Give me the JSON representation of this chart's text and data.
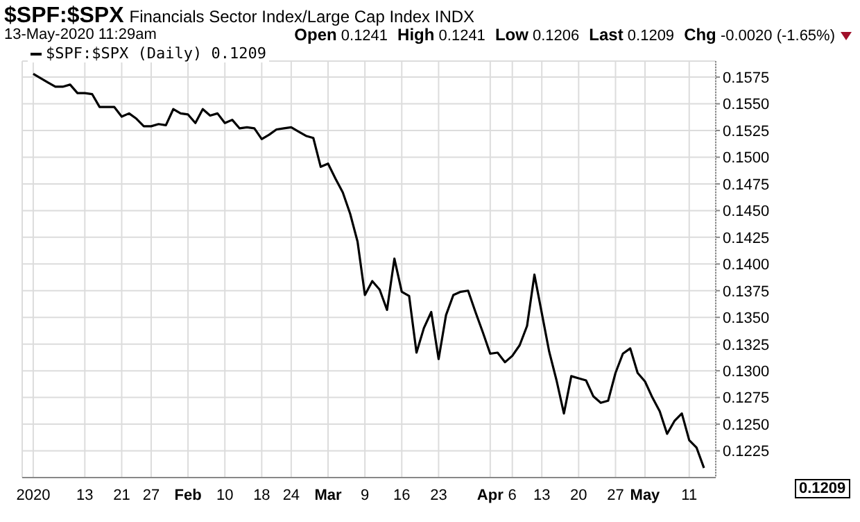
{
  "chart_data": {
    "type": "line",
    "title": "$SPF:$SPX",
    "subtitle": "Financials Sector Index/Large Cap Index  INDX",
    "annotations": [
      "13-May-2020 11:29am",
      "Open 0.1241",
      "High 0.1241",
      "Low 0.1206",
      "Last 0.1209",
      "Chg -0.0020 (-1.65%)",
      "0.1209"
    ],
    "categories": [
      "2020",
      null,
      null,
      null,
      null,
      null,
      null,
      "13",
      null,
      null,
      null,
      null,
      "21",
      null,
      null,
      null,
      "27",
      null,
      null,
      null,
      null,
      "Feb",
      null,
      null,
      null,
      null,
      "10",
      null,
      null,
      null,
      null,
      "18",
      null,
      null,
      null,
      "24",
      null,
      null,
      null,
      null,
      "Mar",
      null,
      null,
      null,
      null,
      "9",
      null,
      null,
      null,
      null,
      "16",
      null,
      null,
      null,
      null,
      "23",
      null,
      null,
      null,
      null,
      null,
      null,
      "Apr",
      null,
      null,
      "6",
      null,
      null,
      null,
      "13",
      null,
      null,
      null,
      null,
      "20",
      null,
      null,
      null,
      null,
      "27",
      null,
      null,
      null,
      "May",
      null,
      null,
      null,
      null,
      null,
      "11",
      null,
      null
    ],
    "series": [
      {
        "name": "$SPF:$SPX (Daily) 0.1209",
        "color": "#000000",
        "values": [
          0.1578,
          0.1574,
          0.157,
          0.1566,
          0.1566,
          0.1568,
          0.156,
          0.156,
          0.1559,
          0.1547,
          0.1547,
          0.1547,
          0.1538,
          0.1541,
          0.1536,
          0.1529,
          0.1529,
          0.1531,
          0.153,
          0.1545,
          0.1541,
          0.154,
          0.1532,
          0.1545,
          0.1539,
          0.1541,
          0.1532,
          0.1535,
          0.1527,
          0.1528,
          0.1527,
          0.1517,
          0.1521,
          0.1526,
          0.1527,
          0.1528,
          0.1524,
          0.152,
          0.1518,
          0.1491,
          0.1494,
          0.148,
          0.1467,
          0.1447,
          0.1421,
          0.1371,
          0.1384,
          0.1376,
          0.1357,
          0.1405,
          0.1374,
          0.137,
          0.1317,
          0.134,
          0.1355,
          0.1311,
          0.1352,
          0.1371,
          0.1374,
          0.1375,
          0.1355,
          0.1336,
          0.1316,
          0.1317,
          0.1308,
          0.1314,
          0.1324,
          0.1342,
          0.139,
          0.1354,
          0.1318,
          0.1291,
          0.126,
          0.1295,
          0.1293,
          0.1291,
          0.1276,
          0.127,
          0.1272,
          0.1298,
          0.1316,
          0.1321,
          0.1298,
          0.129,
          0.1275,
          0.1262,
          0.1241,
          0.1253,
          0.126,
          0.1235,
          0.1228,
          0.1209
        ]
      }
    ],
    "ylim": [
      0.12,
      0.159
    ],
    "yticks": [
      0.1225,
      {
        "value": 0.125,
        "label": "0.1250"
      },
      0.1275,
      {
        "value": 0.13,
        "label": "0.1300"
      },
      0.1325,
      {
        "value": 0.135,
        "label": "0.1350"
      },
      0.1375,
      {
        "value": 0.14,
        "label": "0.1400"
      },
      0.1425,
      {
        "value": 0.145,
        "label": "0.1450"
      },
      0.1475,
      {
        "value": 0.15,
        "label": "0.1500"
      },
      0.1525,
      {
        "value": 0.155,
        "label": "0.1550"
      },
      0.1575
    ],
    "grid": true,
    "legend": "top left",
    "marker": "none",
    "line_style": "solid"
  }
}
